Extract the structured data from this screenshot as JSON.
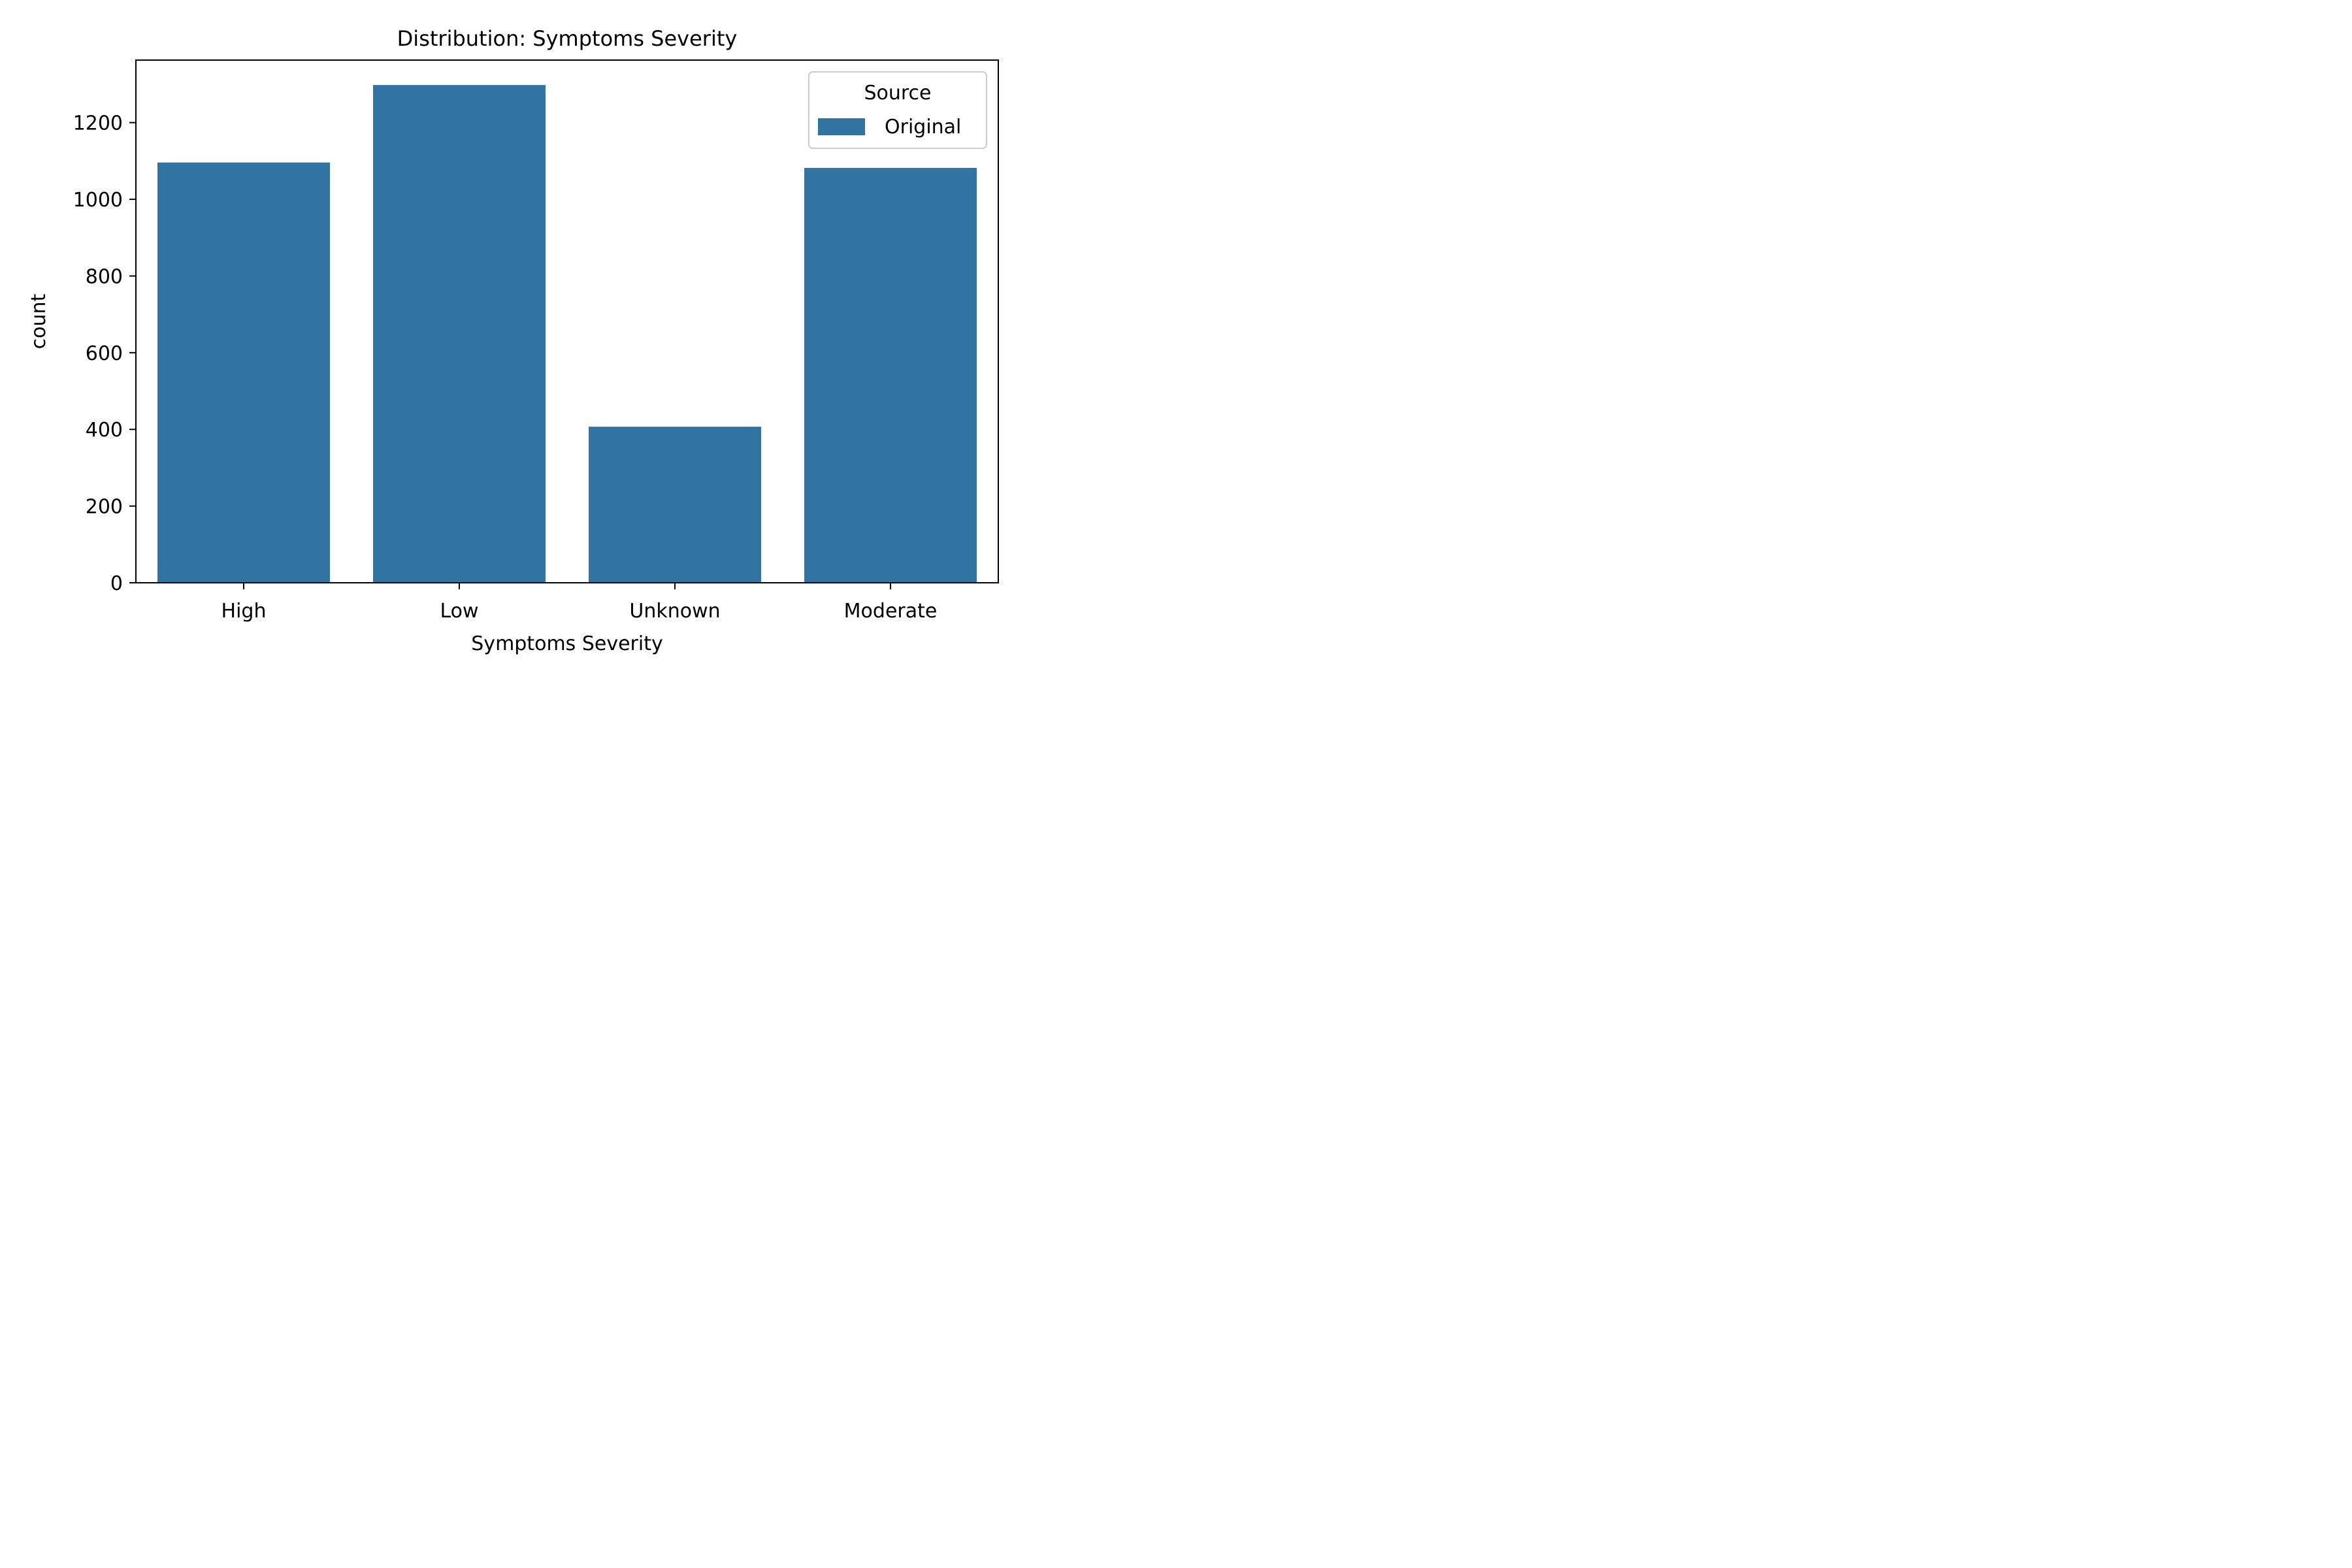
{
  "chart_data": {
    "type": "bar",
    "title": "Distribution: Symptoms Severity",
    "xlabel": "Symptoms Severity",
    "ylabel": "count",
    "categories": [
      "High",
      "Low",
      "Unknown",
      "Moderate"
    ],
    "series": [
      {
        "name": "Original",
        "color": "#3274a1",
        "values": [
          1096,
          1298,
          407,
          1082
        ]
      }
    ],
    "ylim": [
      0,
      1363
    ],
    "yticks": [
      0,
      200,
      400,
      600,
      800,
      1000,
      1200
    ],
    "legend": {
      "title": "Source",
      "placement": "top-right"
    },
    "grid": false
  }
}
